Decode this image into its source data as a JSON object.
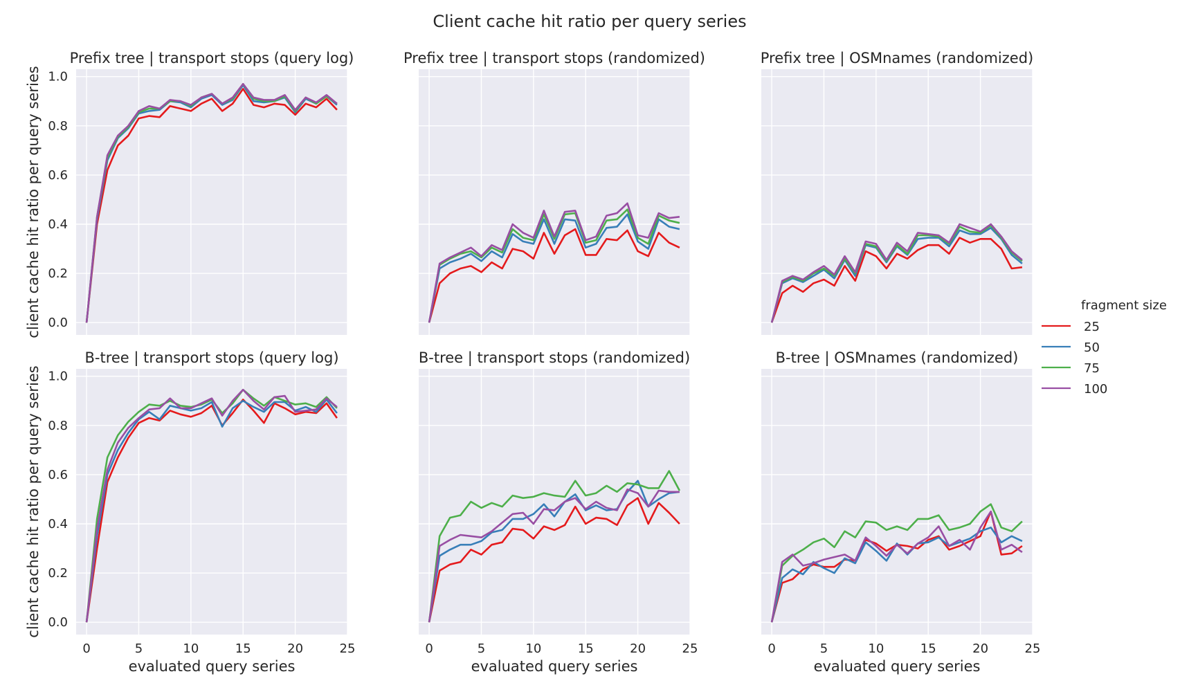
{
  "title": "Client cache hit ratio per query series",
  "legend": {
    "title": "fragment size",
    "placement": "right",
    "entries": [
      {
        "label": "25",
        "color": "#e41a1c"
      },
      {
        "label": "50",
        "color": "#377eb8"
      },
      {
        "label": "75",
        "color": "#4daf4a"
      },
      {
        "label": "100",
        "color": "#984ea3"
      }
    ]
  },
  "chart_data": [
    {
      "type": "line",
      "title": "Prefix tree | transport stops (query log)",
      "xlabel": "",
      "ylabel": "client cache hit ratio per query series",
      "xlim": [
        -1,
        25
      ],
      "ylim": [
        -0.05,
        1.03
      ],
      "xticks": [
        "0",
        "5",
        "10",
        "15",
        "20",
        "25"
      ],
      "yticks": [
        "0.0",
        "0.2",
        "0.4",
        "0.6",
        "0.8",
        "1.0"
      ],
      "grid": true,
      "x": [
        0,
        1,
        2,
        3,
        4,
        5,
        6,
        7,
        8,
        9,
        10,
        11,
        12,
        13,
        14,
        15,
        16,
        17,
        18,
        19,
        20,
        21,
        22,
        23,
        24
      ],
      "series": [
        {
          "name": "25",
          "color": "#e41a1c",
          "values": [
            0.0,
            0.4,
            0.62,
            0.72,
            0.76,
            0.83,
            0.84,
            0.835,
            0.88,
            0.87,
            0.86,
            0.89,
            0.91,
            0.86,
            0.89,
            0.95,
            0.885,
            0.875,
            0.89,
            0.885,
            0.845,
            0.89,
            0.875,
            0.91,
            0.865
          ]
        },
        {
          "name": "50",
          "color": "#377eb8",
          "values": [
            0.0,
            0.42,
            0.66,
            0.75,
            0.79,
            0.85,
            0.86,
            0.865,
            0.9,
            0.895,
            0.875,
            0.91,
            0.925,
            0.885,
            0.905,
            0.965,
            0.9,
            0.895,
            0.9,
            0.915,
            0.855,
            0.91,
            0.89,
            0.92,
            0.885
          ]
        },
        {
          "name": "75",
          "color": "#4daf4a",
          "values": [
            0.0,
            0.43,
            0.67,
            0.755,
            0.795,
            0.855,
            0.87,
            0.87,
            0.9,
            0.9,
            0.88,
            0.915,
            0.93,
            0.89,
            0.91,
            0.97,
            0.91,
            0.9,
            0.9,
            0.92,
            0.86,
            0.915,
            0.89,
            0.92,
            0.89
          ]
        },
        {
          "name": "100",
          "color": "#984ea3",
          "values": [
            0.0,
            0.43,
            0.68,
            0.76,
            0.8,
            0.86,
            0.88,
            0.87,
            0.905,
            0.9,
            0.885,
            0.915,
            0.93,
            0.89,
            0.915,
            0.97,
            0.915,
            0.905,
            0.905,
            0.925,
            0.865,
            0.915,
            0.895,
            0.925,
            0.89
          ]
        }
      ]
    },
    {
      "type": "line",
      "title": "Prefix tree | transport stops (randomized)",
      "xlabel": "",
      "ylabel": "",
      "xlim": [
        -1,
        25
      ],
      "ylim": [
        -0.05,
        1.03
      ],
      "xticks": [
        "0",
        "5",
        "10",
        "15",
        "20",
        "25"
      ],
      "yticks": [],
      "grid": true,
      "x": [
        0,
        1,
        2,
        3,
        4,
        5,
        6,
        7,
        8,
        9,
        10,
        11,
        12,
        13,
        14,
        15,
        16,
        17,
        18,
        19,
        20,
        21,
        22,
        23,
        24
      ],
      "series": [
        {
          "name": "25",
          "color": "#e41a1c",
          "values": [
            0.0,
            0.16,
            0.2,
            0.22,
            0.23,
            0.205,
            0.245,
            0.22,
            0.3,
            0.29,
            0.26,
            0.365,
            0.28,
            0.355,
            0.38,
            0.275,
            0.275,
            0.34,
            0.335,
            0.375,
            0.29,
            0.27,
            0.365,
            0.325,
            0.305
          ]
        },
        {
          "name": "50",
          "color": "#377eb8",
          "values": [
            0.0,
            0.22,
            0.245,
            0.26,
            0.28,
            0.25,
            0.29,
            0.265,
            0.36,
            0.33,
            0.32,
            0.42,
            0.32,
            0.42,
            0.415,
            0.305,
            0.32,
            0.385,
            0.39,
            0.44,
            0.33,
            0.3,
            0.42,
            0.39,
            0.38
          ]
        },
        {
          "name": "75",
          "color": "#4daf4a",
          "values": [
            0.0,
            0.235,
            0.26,
            0.28,
            0.29,
            0.265,
            0.305,
            0.285,
            0.38,
            0.345,
            0.335,
            0.44,
            0.34,
            0.44,
            0.445,
            0.325,
            0.335,
            0.415,
            0.42,
            0.46,
            0.345,
            0.32,
            0.435,
            0.415,
            0.405
          ]
        },
        {
          "name": "100",
          "color": "#984ea3",
          "values": [
            0.0,
            0.24,
            0.265,
            0.285,
            0.305,
            0.27,
            0.315,
            0.295,
            0.4,
            0.365,
            0.345,
            0.455,
            0.35,
            0.45,
            0.455,
            0.335,
            0.35,
            0.435,
            0.445,
            0.485,
            0.355,
            0.345,
            0.445,
            0.425,
            0.43
          ]
        }
      ]
    },
    {
      "type": "line",
      "title": "Prefix tree | OSMnames (randomized)",
      "xlabel": "",
      "ylabel": "",
      "xlim": [
        -1,
        25
      ],
      "ylim": [
        -0.05,
        1.03
      ],
      "xticks": [
        "0",
        "5",
        "10",
        "15",
        "20",
        "25"
      ],
      "yticks": [],
      "grid": true,
      "x": [
        0,
        1,
        2,
        3,
        4,
        5,
        6,
        7,
        8,
        9,
        10,
        11,
        12,
        13,
        14,
        15,
        16,
        17,
        18,
        19,
        20,
        21,
        22,
        23,
        24
      ],
      "series": [
        {
          "name": "25",
          "color": "#e41a1c",
          "values": [
            0.0,
            0.12,
            0.15,
            0.125,
            0.16,
            0.175,
            0.15,
            0.23,
            0.17,
            0.29,
            0.27,
            0.22,
            0.28,
            0.26,
            0.295,
            0.315,
            0.315,
            0.28,
            0.345,
            0.325,
            0.34,
            0.34,
            0.3,
            0.22,
            0.225
          ]
        },
        {
          "name": "50",
          "color": "#377eb8",
          "values": [
            0.0,
            0.16,
            0.18,
            0.165,
            0.19,
            0.215,
            0.18,
            0.255,
            0.19,
            0.315,
            0.305,
            0.245,
            0.31,
            0.275,
            0.34,
            0.345,
            0.345,
            0.31,
            0.375,
            0.36,
            0.36,
            0.385,
            0.34,
            0.275,
            0.24
          ]
        },
        {
          "name": "75",
          "color": "#4daf4a",
          "values": [
            0.0,
            0.165,
            0.185,
            0.17,
            0.2,
            0.22,
            0.19,
            0.26,
            0.2,
            0.32,
            0.31,
            0.25,
            0.315,
            0.28,
            0.355,
            0.355,
            0.35,
            0.32,
            0.39,
            0.37,
            0.365,
            0.395,
            0.345,
            0.285,
            0.25
          ]
        },
        {
          "name": "100",
          "color": "#984ea3",
          "values": [
            0.0,
            0.17,
            0.19,
            0.175,
            0.205,
            0.23,
            0.195,
            0.27,
            0.205,
            0.33,
            0.32,
            0.255,
            0.325,
            0.29,
            0.365,
            0.36,
            0.355,
            0.325,
            0.4,
            0.385,
            0.37,
            0.4,
            0.35,
            0.29,
            0.255
          ]
        }
      ]
    },
    {
      "type": "line",
      "title": "B-tree | transport stops (query log)",
      "xlabel": "evaluated query series",
      "ylabel": "client cache hit ratio per query series",
      "xlim": [
        -1,
        25
      ],
      "ylim": [
        -0.05,
        1.03
      ],
      "xticks": [
        "0",
        "5",
        "10",
        "15",
        "20",
        "25"
      ],
      "yticks": [
        "0.0",
        "0.2",
        "0.4",
        "0.6",
        "0.8",
        "1.0"
      ],
      "grid": true,
      "x": [
        0,
        1,
        2,
        3,
        4,
        5,
        6,
        7,
        8,
        9,
        10,
        11,
        12,
        13,
        14,
        15,
        16,
        17,
        18,
        19,
        20,
        21,
        22,
        23,
        24
      ],
      "series": [
        {
          "name": "25",
          "color": "#e41a1c",
          "values": [
            0.0,
            0.3,
            0.57,
            0.67,
            0.75,
            0.81,
            0.83,
            0.82,
            0.86,
            0.845,
            0.835,
            0.85,
            0.88,
            0.8,
            0.85,
            0.905,
            0.86,
            0.81,
            0.89,
            0.87,
            0.845,
            0.855,
            0.85,
            0.89,
            0.83
          ]
        },
        {
          "name": "50",
          "color": "#377eb8",
          "values": [
            0.0,
            0.35,
            0.6,
            0.7,
            0.77,
            0.825,
            0.855,
            0.825,
            0.88,
            0.87,
            0.86,
            0.87,
            0.895,
            0.795,
            0.87,
            0.9,
            0.875,
            0.855,
            0.895,
            0.895,
            0.86,
            0.875,
            0.855,
            0.905,
            0.85
          ]
        },
        {
          "name": "75",
          "color": "#4daf4a",
          "values": [
            0.0,
            0.42,
            0.67,
            0.76,
            0.815,
            0.855,
            0.885,
            0.88,
            0.9,
            0.88,
            0.875,
            0.885,
            0.905,
            0.85,
            0.89,
            0.945,
            0.91,
            0.88,
            0.915,
            0.9,
            0.885,
            0.89,
            0.875,
            0.915,
            0.87
          ]
        },
        {
          "name": "100",
          "color": "#984ea3",
          "values": [
            0.0,
            0.38,
            0.62,
            0.73,
            0.79,
            0.83,
            0.865,
            0.87,
            0.91,
            0.87,
            0.87,
            0.89,
            0.91,
            0.84,
            0.9,
            0.945,
            0.9,
            0.865,
            0.915,
            0.92,
            0.855,
            0.86,
            0.865,
            0.91,
            0.875
          ]
        }
      ]
    },
    {
      "type": "line",
      "title": "B-tree | transport stops (randomized)",
      "xlabel": "evaluated query series",
      "ylabel": "",
      "xlim": [
        -1,
        25
      ],
      "ylim": [
        -0.05,
        1.03
      ],
      "xticks": [
        "0",
        "5",
        "10",
        "15",
        "20",
        "25"
      ],
      "yticks": [],
      "grid": true,
      "x": [
        0,
        1,
        2,
        3,
        4,
        5,
        6,
        7,
        8,
        9,
        10,
        11,
        12,
        13,
        14,
        15,
        16,
        17,
        18,
        19,
        20,
        21,
        22,
        23,
        24
      ],
      "series": [
        {
          "name": "25",
          "color": "#e41a1c",
          "values": [
            0.0,
            0.21,
            0.235,
            0.245,
            0.295,
            0.275,
            0.315,
            0.325,
            0.38,
            0.375,
            0.34,
            0.39,
            0.375,
            0.395,
            0.47,
            0.4,
            0.425,
            0.42,
            0.395,
            0.475,
            0.505,
            0.4,
            0.485,
            0.445,
            0.4
          ]
        },
        {
          "name": "50",
          "color": "#377eb8",
          "values": [
            0.0,
            0.27,
            0.295,
            0.315,
            0.315,
            0.33,
            0.365,
            0.375,
            0.42,
            0.42,
            0.44,
            0.48,
            0.43,
            0.49,
            0.52,
            0.455,
            0.475,
            0.455,
            0.46,
            0.53,
            0.575,
            0.47,
            0.5,
            0.525,
            0.53
          ]
        },
        {
          "name": "75",
          "color": "#4daf4a",
          "values": [
            0.0,
            0.35,
            0.425,
            0.435,
            0.49,
            0.465,
            0.485,
            0.47,
            0.515,
            0.505,
            0.51,
            0.525,
            0.515,
            0.51,
            0.575,
            0.515,
            0.525,
            0.555,
            0.53,
            0.565,
            0.56,
            0.545,
            0.545,
            0.615,
            0.535
          ]
        },
        {
          "name": "100",
          "color": "#984ea3",
          "values": [
            0.0,
            0.31,
            0.335,
            0.355,
            0.35,
            0.345,
            0.37,
            0.405,
            0.44,
            0.445,
            0.4,
            0.46,
            0.455,
            0.49,
            0.505,
            0.46,
            0.49,
            0.465,
            0.455,
            0.54,
            0.525,
            0.47,
            0.535,
            0.53,
            0.53
          ]
        }
      ]
    },
    {
      "type": "line",
      "title": "B-tree | OSMnames (randomized)",
      "xlabel": "evaluated query series",
      "ylabel": "",
      "xlim": [
        -1,
        25
      ],
      "ylim": [
        -0.05,
        1.03
      ],
      "xticks": [
        "0",
        "5",
        "10",
        "15",
        "20",
        "25"
      ],
      "yticks": [],
      "grid": true,
      "x": [
        0,
        1,
        2,
        3,
        4,
        5,
        6,
        7,
        8,
        9,
        10,
        11,
        12,
        13,
        14,
        15,
        16,
        17,
        18,
        19,
        20,
        21,
        22,
        23,
        24
      ],
      "series": [
        {
          "name": "25",
          "color": "#e41a1c",
          "values": [
            0.0,
            0.16,
            0.175,
            0.215,
            0.235,
            0.225,
            0.225,
            0.255,
            0.25,
            0.335,
            0.32,
            0.29,
            0.315,
            0.31,
            0.3,
            0.335,
            0.35,
            0.295,
            0.31,
            0.33,
            0.35,
            0.45,
            0.275,
            0.28,
            0.31
          ]
        },
        {
          "name": "50",
          "color": "#377eb8",
          "values": [
            0.0,
            0.18,
            0.215,
            0.195,
            0.245,
            0.22,
            0.2,
            0.26,
            0.24,
            0.325,
            0.29,
            0.25,
            0.32,
            0.275,
            0.32,
            0.325,
            0.345,
            0.31,
            0.325,
            0.34,
            0.37,
            0.385,
            0.325,
            0.35,
            0.33
          ]
        },
        {
          "name": "75",
          "color": "#4daf4a",
          "values": [
            0.0,
            0.23,
            0.27,
            0.295,
            0.325,
            0.34,
            0.305,
            0.37,
            0.345,
            0.41,
            0.405,
            0.375,
            0.39,
            0.375,
            0.42,
            0.42,
            0.435,
            0.375,
            0.385,
            0.4,
            0.45,
            0.48,
            0.385,
            0.37,
            0.41
          ]
        },
        {
          "name": "100",
          "color": "#984ea3",
          "values": [
            0.0,
            0.245,
            0.275,
            0.23,
            0.24,
            0.255,
            0.265,
            0.275,
            0.25,
            0.345,
            0.31,
            0.27,
            0.315,
            0.28,
            0.32,
            0.345,
            0.39,
            0.31,
            0.335,
            0.295,
            0.385,
            0.45,
            0.295,
            0.315,
            0.285
          ]
        }
      ]
    }
  ]
}
